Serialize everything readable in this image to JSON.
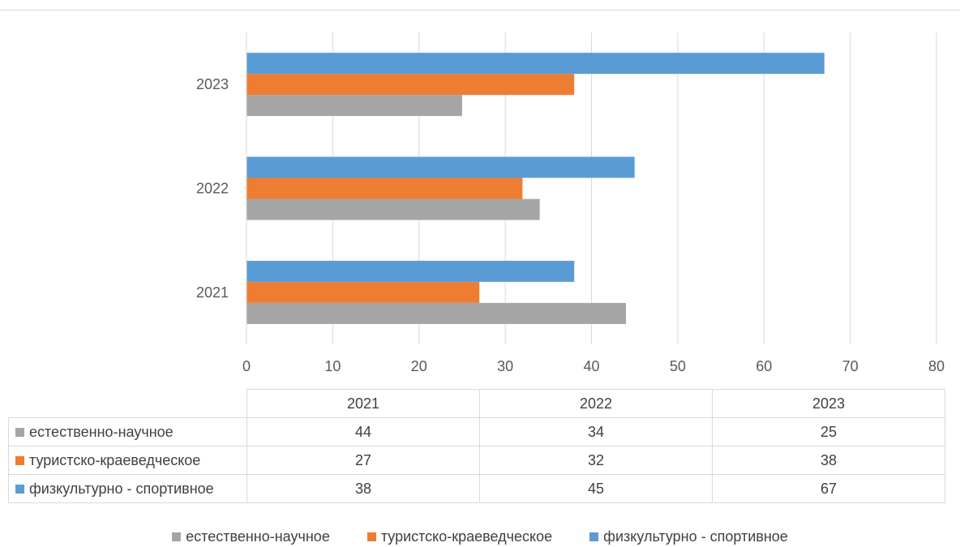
{
  "chart_data": {
    "type": "bar",
    "orientation": "horizontal",
    "title": "",
    "xlabel": "",
    "ylabel": "",
    "categories": [
      "2021",
      "2022",
      "2023"
    ],
    "xlim": [
      0,
      80
    ],
    "x_ticks": [
      0,
      10,
      20,
      30,
      40,
      50,
      60,
      70,
      80
    ],
    "grid": true,
    "legend_position": "bottom",
    "data_table": true,
    "series": [
      {
        "name": "естественно-научное",
        "color": "#a5a5a5",
        "values": [
          44,
          34,
          25
        ]
      },
      {
        "name": "туристско-краеведческое",
        "color": "#ed7d31",
        "values": [
          27,
          32,
          38
        ]
      },
      {
        "name": "физкультурно - спортивное",
        "color": "#5b9bd5",
        "values": [
          38,
          45,
          67
        ]
      }
    ]
  }
}
